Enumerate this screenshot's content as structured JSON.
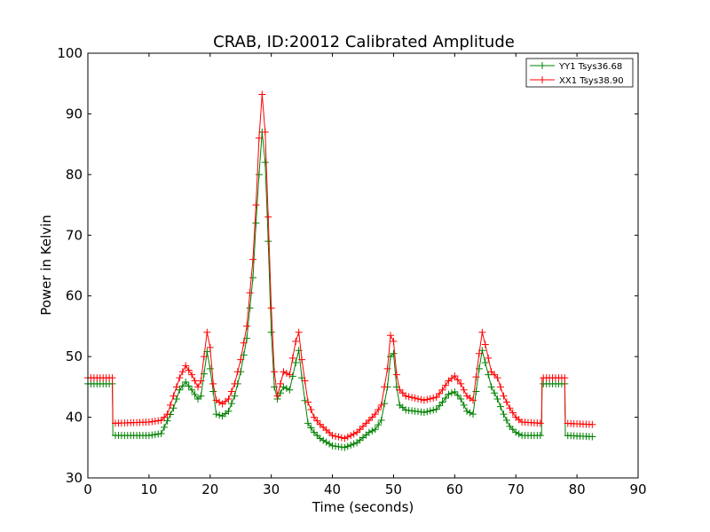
{
  "chart_data": {
    "type": "line",
    "title": "CRAB, ID:20012 Calibrated Amplitude",
    "xlabel": "Time (seconds)",
    "ylabel": "Power in Kelvin",
    "xlim": [
      0,
      90
    ],
    "ylim": [
      30,
      100
    ],
    "xticks": [
      "0",
      "10",
      "20",
      "30",
      "40",
      "50",
      "60",
      "70",
      "80",
      "90"
    ],
    "yticks": [
      "30",
      "40",
      "50",
      "60",
      "70",
      "80",
      "90",
      "100"
    ],
    "grid": false,
    "legend_placement": "top-right",
    "marker": "+",
    "series": [
      {
        "name": "YY1 Tsys36.68",
        "color": "#008000",
        "points": [
          [
            0,
            45.5
          ],
          [
            4,
            45.5
          ],
          [
            4.1,
            37.0
          ],
          [
            10,
            37.0
          ],
          [
            12,
            37.3
          ],
          [
            14,
            41.5
          ],
          [
            15,
            44.5
          ],
          [
            16,
            45.8
          ],
          [
            17,
            44.5
          ],
          [
            18,
            43.0
          ],
          [
            18.5,
            43.5
          ],
          [
            19.5,
            50.8
          ],
          [
            20,
            48.0
          ],
          [
            21,
            40.5
          ],
          [
            22,
            40.2
          ],
          [
            23,
            41.0
          ],
          [
            24,
            43.5
          ],
          [
            25,
            47.5
          ],
          [
            26,
            53.0
          ],
          [
            27,
            63.0
          ],
          [
            27.5,
            72.0
          ],
          [
            28,
            80.0
          ],
          [
            28.5,
            87.0
          ],
          [
            29,
            82.0
          ],
          [
            29.5,
            69.0
          ],
          [
            30,
            54.0
          ],
          [
            30.5,
            45.0
          ],
          [
            31,
            43.0
          ],
          [
            32,
            45.0
          ],
          [
            33,
            44.5
          ],
          [
            34,
            49.0
          ],
          [
            34.5,
            51.0
          ],
          [
            35,
            46.5
          ],
          [
            36,
            39.0
          ],
          [
            37,
            37.5
          ],
          [
            38,
            36.5
          ],
          [
            40,
            35.3
          ],
          [
            42,
            35.0
          ],
          [
            44,
            35.8
          ],
          [
            46,
            37.5
          ],
          [
            47,
            38.0
          ],
          [
            48,
            39.5
          ],
          [
            49,
            45.0
          ],
          [
            49.5,
            50.0
          ],
          [
            50,
            50.5
          ],
          [
            50.5,
            45.0
          ],
          [
            51,
            42.0
          ],
          [
            52,
            41.2
          ],
          [
            55,
            40.8
          ],
          [
            57,
            41.3
          ],
          [
            58,
            42.5
          ],
          [
            59,
            43.8
          ],
          [
            60,
            44.2
          ],
          [
            61,
            43.0
          ],
          [
            62,
            41.0
          ],
          [
            63,
            40.5
          ],
          [
            64,
            48.0
          ],
          [
            64.5,
            51.0
          ],
          [
            65,
            49.0
          ],
          [
            66,
            45.0
          ],
          [
            67,
            43.0
          ],
          [
            68,
            40.5
          ],
          [
            69,
            38.5
          ],
          [
            70,
            37.5
          ],
          [
            71,
            37.0
          ],
          [
            74.2,
            37.0
          ],
          [
            74.3,
            45.5
          ],
          [
            78,
            45.5
          ],
          [
            78.1,
            37.0
          ],
          [
            82.5,
            36.8
          ]
        ]
      },
      {
        "name": "XX1 Tsys38.90",
        "color": "#ff0000",
        "points": [
          [
            0,
            46.5
          ],
          [
            4,
            46.5
          ],
          [
            4.1,
            39.0
          ],
          [
            10,
            39.2
          ],
          [
            12,
            39.5
          ],
          [
            13,
            40.5
          ],
          [
            14,
            43.5
          ],
          [
            15,
            46.5
          ],
          [
            16,
            48.5
          ],
          [
            17,
            47.0
          ],
          [
            18,
            45.0
          ],
          [
            18.5,
            46.0
          ],
          [
            19.5,
            54.0
          ],
          [
            20,
            51.5
          ],
          [
            20.5,
            45.5
          ],
          [
            21,
            42.8
          ],
          [
            22,
            42.2
          ],
          [
            23,
            43.0
          ],
          [
            24,
            45.5
          ],
          [
            25,
            49.5
          ],
          [
            26,
            55.0
          ],
          [
            27,
            66.0
          ],
          [
            27.5,
            75.0
          ],
          [
            28,
            86.0
          ],
          [
            28.5,
            93.2
          ],
          [
            29,
            87.0
          ],
          [
            29.5,
            73.0
          ],
          [
            30,
            58.0
          ],
          [
            30.5,
            47.5
          ],
          [
            31,
            43.5
          ],
          [
            32,
            47.5
          ],
          [
            33,
            47.0
          ],
          [
            34,
            52.5
          ],
          [
            34.5,
            54.0
          ],
          [
            35,
            49.5
          ],
          [
            36,
            42.5
          ],
          [
            37,
            40.0
          ],
          [
            38,
            38.8
          ],
          [
            40,
            37.0
          ],
          [
            42,
            36.5
          ],
          [
            44,
            37.5
          ],
          [
            46,
            39.5
          ],
          [
            47,
            40.5
          ],
          [
            48,
            42.0
          ],
          [
            49,
            48.0
          ],
          [
            49.5,
            53.5
          ],
          [
            50,
            52.5
          ],
          [
            50.5,
            47.0
          ],
          [
            51,
            44.5
          ],
          [
            52,
            43.5
          ],
          [
            55,
            42.8
          ],
          [
            57,
            43.3
          ],
          [
            58,
            44.5
          ],
          [
            59,
            46.0
          ],
          [
            60,
            46.8
          ],
          [
            61,
            45.5
          ],
          [
            62,
            43.5
          ],
          [
            63,
            42.8
          ],
          [
            64,
            50.5
          ],
          [
            64.5,
            54.0
          ],
          [
            65,
            52.0
          ],
          [
            66,
            47.5
          ],
          [
            67,
            46.5
          ],
          [
            68,
            43.5
          ],
          [
            69,
            41.5
          ],
          [
            70,
            40.0
          ],
          [
            71,
            39.2
          ],
          [
            74.2,
            39.0
          ],
          [
            74.3,
            46.5
          ],
          [
            78,
            46.5
          ],
          [
            78.1,
            39.0
          ],
          [
            82.5,
            38.8
          ]
        ]
      }
    ]
  }
}
